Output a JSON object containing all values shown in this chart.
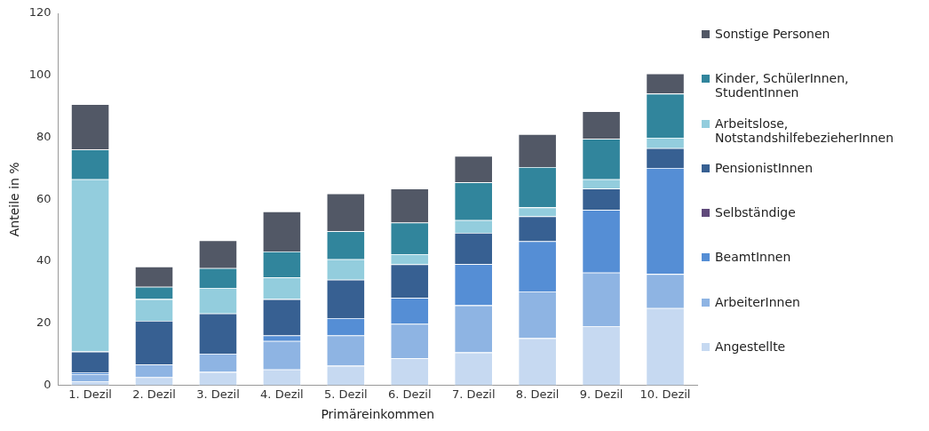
{
  "chart_data": {
    "type": "bar",
    "stacked": true,
    "xlabel": "Primäreinkommen",
    "ylabel": "Anteile in %",
    "categories": [
      "1. Dezil",
      "2. Dezil",
      "3. Dezil",
      "4. Dezil",
      "5. Dezil",
      "6. Dezil",
      "7. Dezil",
      "8. Dezil",
      "9. Dezil",
      "10. Dezil"
    ],
    "ylim": [
      0,
      120
    ],
    "yticks": [
      0,
      20,
      40,
      60,
      80,
      100,
      120
    ],
    "grid": false,
    "legend": "right",
    "series": [
      {
        "name": "Angestellte",
        "color": "#c6d9f1",
        "values": [
          1.3,
          2.6,
          4.3,
          5.1,
          6.3,
          8.7,
          10.6,
          15.2,
          19.1,
          24.9
        ]
      },
      {
        "name": "ArbeiterInnen",
        "color": "#8eb4e3",
        "values": [
          2.3,
          4.1,
          5.9,
          9.2,
          9.8,
          11.1,
          15.2,
          15.1,
          17.3,
          11.0
        ]
      },
      {
        "name": "BeamtInnen",
        "color": "#558ed5",
        "values": [
          0.6,
          0,
          0,
          1.8,
          5.6,
          8.4,
          13.3,
          16.2,
          20.2,
          34.2
        ]
      },
      {
        "name": "Selbständige",
        "color": "#604a7b",
        "values": [
          0,
          0,
          0,
          0,
          0,
          0,
          0,
          0,
          0,
          0
        ]
      },
      {
        "name": "PensionistInnen",
        "color": "#376092",
        "values": [
          6.7,
          14.1,
          13.0,
          11.7,
          12.4,
          10.8,
          10.1,
          8.0,
          6.9,
          6.4
        ]
      },
      {
        "name": "Arbeitslose, NotstandshilfebezieherInnen",
        "color": "#93cddd",
        "values": [
          55.6,
          7.0,
          8.2,
          7.0,
          6.6,
          3.3,
          4.1,
          2.9,
          3.0,
          3.4
        ]
      },
      {
        "name": "Kinder, SchülerInnen, StudentInnen",
        "color": "#31859c",
        "values": [
          9.6,
          4.0,
          6.4,
          8.4,
          9.0,
          10.2,
          12.2,
          13.0,
          13.0,
          14.2
        ]
      },
      {
        "name": "Sonstige Personen",
        "color": "#525866",
        "values": [
          14.6,
          6.5,
          9.0,
          12.9,
          12.2,
          11.0,
          8.5,
          10.6,
          8.9,
          6.5
        ]
      }
    ]
  }
}
